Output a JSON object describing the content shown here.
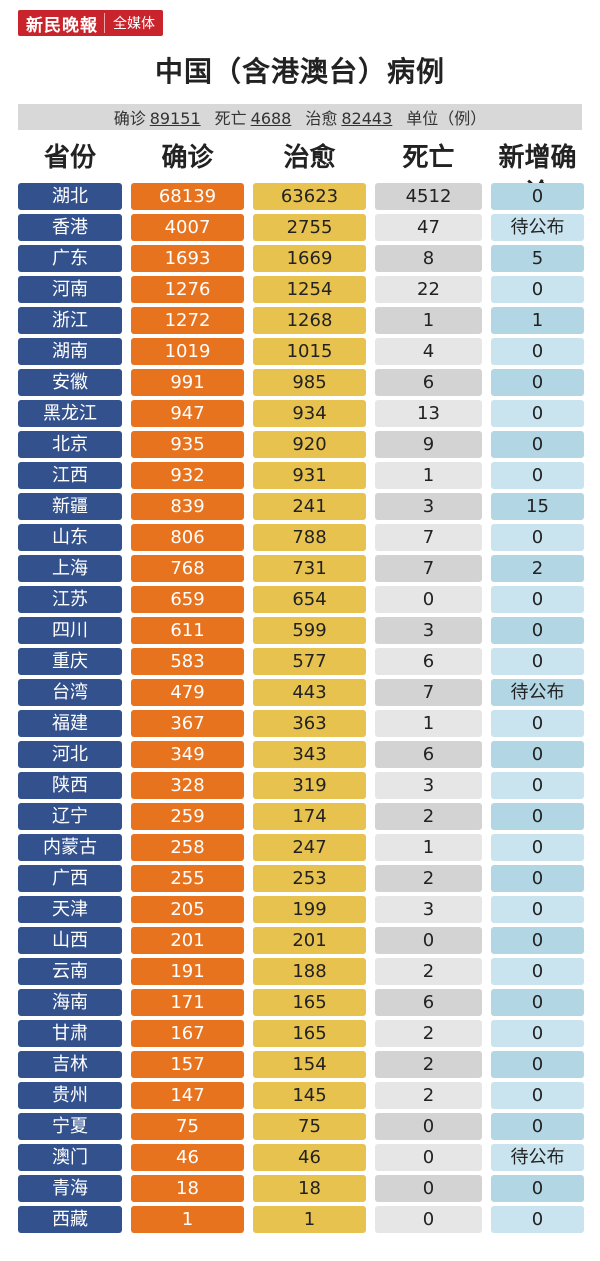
{
  "brand": {
    "logo": "新民晚報",
    "tag": "全媒体"
  },
  "title": "中国（含港澳台）病例",
  "summary": {
    "confirmed_label": "确诊",
    "confirmed": "89151",
    "deaths_label": "死亡",
    "deaths": "4688",
    "cured_label": "治愈",
    "cured": "82443",
    "unit": "单位（例）"
  },
  "headers": {
    "province": "省份",
    "confirmed": "确诊",
    "cured": "治愈",
    "deaths": "死亡",
    "new": "新增确诊"
  },
  "colors": {
    "province": "#33518d",
    "confirmed": "#e8731f",
    "cured": "#e8c24f",
    "deaths": "#d3d3d3",
    "new": "#b2d6e3",
    "brand": "#c9242b"
  },
  "rows": [
    {
      "province": "湖北",
      "confirmed": "68139",
      "cured": "63623",
      "deaths": "4512",
      "new": "0"
    },
    {
      "province": "香港",
      "confirmed": "4007",
      "cured": "2755",
      "deaths": "47",
      "new": "待公布"
    },
    {
      "province": "广东",
      "confirmed": "1693",
      "cured": "1669",
      "deaths": "8",
      "new": "5"
    },
    {
      "province": "河南",
      "confirmed": "1276",
      "cured": "1254",
      "deaths": "22",
      "new": "0"
    },
    {
      "province": "浙江",
      "confirmed": "1272",
      "cured": "1268",
      "deaths": "1",
      "new": "1"
    },
    {
      "province": "湖南",
      "confirmed": "1019",
      "cured": "1015",
      "deaths": "4",
      "new": "0"
    },
    {
      "province": "安徽",
      "confirmed": "991",
      "cured": "985",
      "deaths": "6",
      "new": "0"
    },
    {
      "province": "黑龙江",
      "confirmed": "947",
      "cured": "934",
      "deaths": "13",
      "new": "0"
    },
    {
      "province": "北京",
      "confirmed": "935",
      "cured": "920",
      "deaths": "9",
      "new": "0"
    },
    {
      "province": "江西",
      "confirmed": "932",
      "cured": "931",
      "deaths": "1",
      "new": "0"
    },
    {
      "province": "新疆",
      "confirmed": "839",
      "cured": "241",
      "deaths": "3",
      "new": "15"
    },
    {
      "province": "山东",
      "confirmed": "806",
      "cured": "788",
      "deaths": "7",
      "new": "0"
    },
    {
      "province": "上海",
      "confirmed": "768",
      "cured": "731",
      "deaths": "7",
      "new": "2"
    },
    {
      "province": "江苏",
      "confirmed": "659",
      "cured": "654",
      "deaths": "0",
      "new": "0"
    },
    {
      "province": "四川",
      "confirmed": "611",
      "cured": "599",
      "deaths": "3",
      "new": "0"
    },
    {
      "province": "重庆",
      "confirmed": "583",
      "cured": "577",
      "deaths": "6",
      "new": "0"
    },
    {
      "province": "台湾",
      "confirmed": "479",
      "cured": "443",
      "deaths": "7",
      "new": "待公布"
    },
    {
      "province": "福建",
      "confirmed": "367",
      "cured": "363",
      "deaths": "1",
      "new": "0"
    },
    {
      "province": "河北",
      "confirmed": "349",
      "cured": "343",
      "deaths": "6",
      "new": "0"
    },
    {
      "province": "陕西",
      "confirmed": "328",
      "cured": "319",
      "deaths": "3",
      "new": "0"
    },
    {
      "province": "辽宁",
      "confirmed": "259",
      "cured": "174",
      "deaths": "2",
      "new": "0"
    },
    {
      "province": "内蒙古",
      "confirmed": "258",
      "cured": "247",
      "deaths": "1",
      "new": "0"
    },
    {
      "province": "广西",
      "confirmed": "255",
      "cured": "253",
      "deaths": "2",
      "new": "0"
    },
    {
      "province": "天津",
      "confirmed": "205",
      "cured": "199",
      "deaths": "3",
      "new": "0"
    },
    {
      "province": "山西",
      "confirmed": "201",
      "cured": "201",
      "deaths": "0",
      "new": "0"
    },
    {
      "province": "云南",
      "confirmed": "191",
      "cured": "188",
      "deaths": "2",
      "new": "0"
    },
    {
      "province": "海南",
      "confirmed": "171",
      "cured": "165",
      "deaths": "6",
      "new": "0"
    },
    {
      "province": "甘肃",
      "confirmed": "167",
      "cured": "165",
      "deaths": "2",
      "new": "0"
    },
    {
      "province": "吉林",
      "confirmed": "157",
      "cured": "154",
      "deaths": "2",
      "new": "0"
    },
    {
      "province": "贵州",
      "confirmed": "147",
      "cured": "145",
      "deaths": "2",
      "new": "0"
    },
    {
      "province": "宁夏",
      "confirmed": "75",
      "cured": "75",
      "deaths": "0",
      "new": "0"
    },
    {
      "province": "澳门",
      "confirmed": "46",
      "cured": "46",
      "deaths": "0",
      "new": "待公布"
    },
    {
      "province": "青海",
      "confirmed": "18",
      "cured": "18",
      "deaths": "0",
      "new": "0"
    },
    {
      "province": "西藏",
      "confirmed": "1",
      "cured": "1",
      "deaths": "0",
      "new": "0"
    }
  ]
}
